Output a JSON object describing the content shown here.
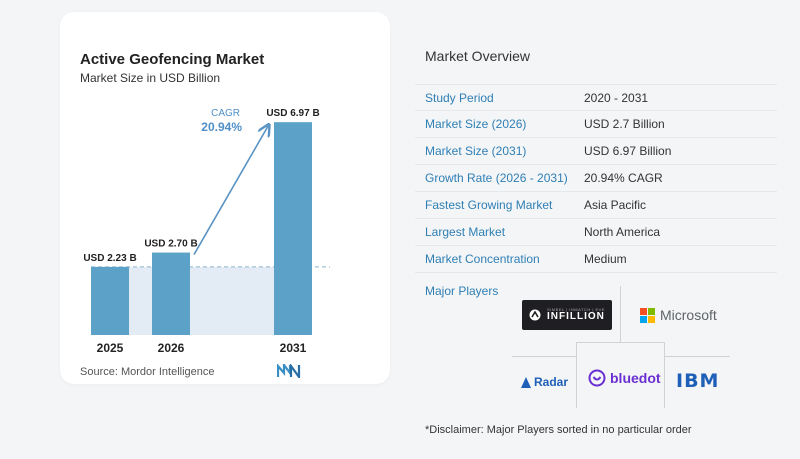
{
  "chart_data": {
    "type": "bar",
    "title": "Active Geofencing Market",
    "subtitle": "Market Size in USD Billion",
    "categories": [
      "2025",
      "2026",
      "2031"
    ],
    "values": [
      2.23,
      2.7,
      6.97
    ],
    "data_labels": [
      "USD 2.23 B",
      "USD 2.70 B",
      "USD 6.97 B"
    ],
    "cagr_label": "CAGR",
    "cagr_value": "20.94%",
    "ylim": [
      0,
      7.5
    ],
    "colors": {
      "bar": "#5ba1c8",
      "band": "#e3ecf4",
      "arrow": "#5b94c4",
      "cagr": "#4f8fc8"
    }
  },
  "source_text": "Source:  Mordor Intelligence",
  "overview": {
    "title": "Market Overview",
    "rows": [
      {
        "label": "Study Period",
        "value": "2020 - 2031"
      },
      {
        "label": "Market Size (2026)",
        "value": "USD 2.7 Billion"
      },
      {
        "label": "Market Size (2031)",
        "value": "USD 6.97 Billion"
      },
      {
        "label": "Growth Rate (2026 - 2031)",
        "value": "20.94% CAGR"
      },
      {
        "label": "Fastest Growing Market",
        "value": "Asia Pacific"
      },
      {
        "label": "Largest Market",
        "value": "North America"
      },
      {
        "label": "Market Concentration",
        "value": "Medium"
      }
    ]
  },
  "players": {
    "title": "Major Players",
    "infillion_small": "SIMBEL | INMATCH | EVE",
    "infillion": "INFILLION",
    "microsoft": "Microsoft",
    "radar": "Radar",
    "bluedot": "bluedot",
    "ibm": "IBM"
  },
  "disclaimer": "*Disclaimer: Major Players sorted in no particular order"
}
